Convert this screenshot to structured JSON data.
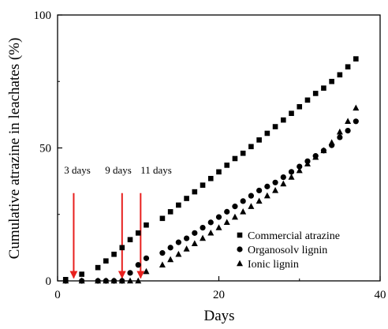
{
  "chart_data": {
    "type": "scatter",
    "xlabel": "Days",
    "ylabel": "Cumulative atrazine in leachates (%)",
    "xlim": [
      0,
      40
    ],
    "ylim": [
      0,
      100
    ],
    "xticks": [
      0,
      20,
      40
    ],
    "yticks": [
      0,
      50,
      100
    ],
    "xtick_labels": [
      "0",
      "20",
      "40"
    ],
    "ytick_labels": [
      "0",
      "50",
      "100"
    ],
    "grid": false,
    "legend_position": "lower-right",
    "series": [
      {
        "name": "Commercial atrazine",
        "marker": "square",
        "color": "#000000",
        "x": [
          1,
          3,
          5,
          6,
          7,
          8,
          9,
          10,
          11,
          13,
          14,
          15,
          16,
          17,
          18,
          19,
          20,
          21,
          22,
          23,
          24,
          25,
          26,
          27,
          28,
          29,
          30,
          31,
          32,
          33,
          34,
          35,
          36,
          37
        ],
        "y": [
          0.5,
          2.5,
          5,
          7.5,
          10,
          12.5,
          15.5,
          18,
          21,
          23.5,
          26,
          28.5,
          31,
          33.5,
          36,
          38.5,
          41,
          43.5,
          46,
          48,
          50.5,
          53,
          55.5,
          58,
          60.5,
          63,
          65.5,
          68,
          70.5,
          72.5,
          75,
          77.5,
          80.5,
          83.5
        ]
      },
      {
        "name": "Organosolv lignin",
        "marker": "circle",
        "color": "#000000",
        "x": [
          1,
          3,
          5,
          6,
          7,
          8,
          9,
          10,
          11,
          13,
          14,
          15,
          16,
          17,
          18,
          19,
          20,
          21,
          22,
          23,
          24,
          25,
          26,
          27,
          28,
          29,
          30,
          31,
          32,
          33,
          34,
          35,
          36,
          37
        ],
        "y": [
          0,
          0,
          0,
          0,
          0,
          0,
          3,
          6,
          8.5,
          10.5,
          12.5,
          14.5,
          16,
          18,
          20,
          22,
          24,
          26,
          28,
          30,
          32,
          34,
          35.5,
          37,
          39,
          41,
          43,
          45,
          47,
          49,
          51,
          54,
          56.5,
          60
        ]
      },
      {
        "name": "Ionic lignin",
        "marker": "triangle",
        "color": "#000000",
        "x": [
          1,
          3,
          5,
          6,
          7,
          8,
          9,
          10,
          11,
          13,
          14,
          15,
          16,
          17,
          18,
          19,
          20,
          21,
          22,
          23,
          24,
          25,
          26,
          27,
          28,
          29,
          30,
          31,
          32,
          33,
          34,
          35,
          36,
          37
        ],
        "y": [
          0,
          0,
          0,
          0,
          0,
          0,
          0,
          0,
          3.5,
          6,
          8,
          10,
          12,
          14,
          16,
          18,
          20,
          22,
          24,
          26,
          28,
          30,
          32,
          34,
          36.5,
          39,
          41.5,
          44,
          46.5,
          49,
          52,
          56,
          60,
          65
        ]
      }
    ],
    "annotations": [
      {
        "text": "3 days",
        "x": 2,
        "arrow_from_y": 33,
        "arrow_to_y": 0.5,
        "color": "#e8201e"
      },
      {
        "text": "9 days",
        "x": 8,
        "arrow_from_y": 33,
        "arrow_to_y": 0.5,
        "color": "#e8201e"
      },
      {
        "text": "11 days",
        "x": 10.3,
        "arrow_from_y": 33,
        "arrow_to_y": 0.5,
        "color": "#e8201e"
      }
    ]
  }
}
